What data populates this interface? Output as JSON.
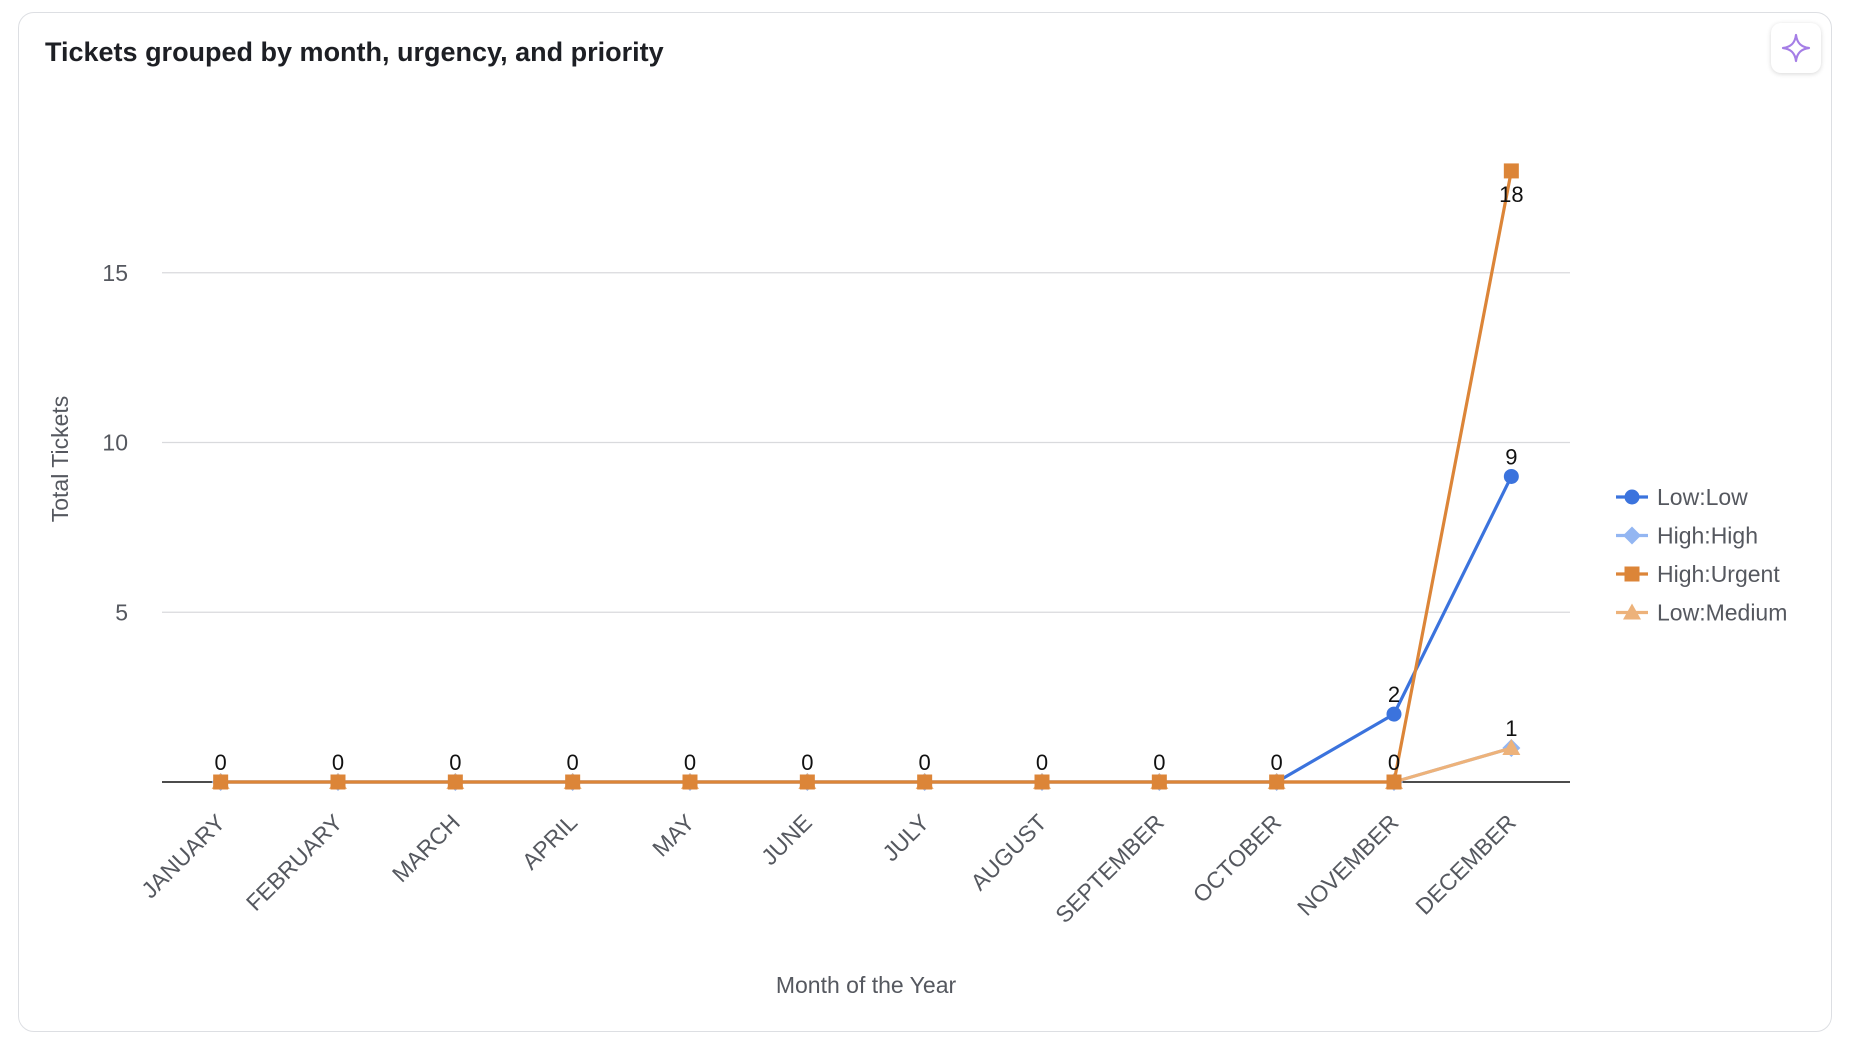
{
  "card": {
    "title": "Tickets grouped by month, urgency, and priority",
    "ai_icon": "sparkle-icon",
    "ai_color": "#a57ee6"
  },
  "chart_data": {
    "type": "line",
    "title": "Tickets grouped by month, urgency, and priority",
    "xlabel": "Month of the Year",
    "ylabel": "Total Tickets",
    "categories": [
      "JANUARY",
      "FEBRUARY",
      "MARCH",
      "APRIL",
      "MAY",
      "JUNE",
      "JULY",
      "AUGUST",
      "SEPTEMBER",
      "OCTOBER",
      "NOVEMBER",
      "DECEMBER"
    ],
    "ylim": [
      0,
      19.5
    ],
    "yticks": [
      5,
      10,
      15
    ],
    "grid": true,
    "legend_position": "right",
    "series": [
      {
        "name": "Low:Low",
        "color": "#3b73dd",
        "marker": "circle",
        "values": [
          0,
          0,
          0,
          0,
          0,
          0,
          0,
          0,
          0,
          0,
          2,
          9
        ]
      },
      {
        "name": "High:High",
        "color": "#93b6f2",
        "marker": "diamond",
        "values": [
          0,
          0,
          0,
          0,
          0,
          0,
          0,
          0,
          0,
          0,
          0,
          1
        ]
      },
      {
        "name": "High:Urgent",
        "color": "#dc8538",
        "marker": "square",
        "values": [
          0,
          0,
          0,
          0,
          0,
          0,
          0,
          0,
          0,
          0,
          0,
          18
        ]
      },
      {
        "name": "Low:Medium",
        "color": "#edb27a",
        "marker": "triangle",
        "values": [
          0,
          0,
          0,
          0,
          0,
          0,
          0,
          0,
          0,
          0,
          0,
          1
        ]
      }
    ],
    "data_labels": [
      {
        "category": "JANUARY",
        "text": "0",
        "position": "above"
      },
      {
        "category": "FEBRUARY",
        "text": "0",
        "position": "above"
      },
      {
        "category": "MARCH",
        "text": "0",
        "position": "above"
      },
      {
        "category": "APRIL",
        "text": "0",
        "position": "above"
      },
      {
        "category": "MAY",
        "text": "0",
        "position": "above"
      },
      {
        "category": "JUNE",
        "text": "0",
        "position": "above"
      },
      {
        "category": "JULY",
        "text": "0",
        "position": "above"
      },
      {
        "category": "AUGUST",
        "text": "0",
        "position": "above"
      },
      {
        "category": "SEPTEMBER",
        "text": "0",
        "position": "above"
      },
      {
        "category": "OCTOBER",
        "text": "0",
        "position": "above"
      },
      {
        "category": "NOVEMBER",
        "text": "2",
        "position": "above",
        "value": 2
      },
      {
        "category": "NOVEMBER",
        "text": "0",
        "position": "above",
        "value": 0
      },
      {
        "category": "DECEMBER",
        "text": "18",
        "position": "below",
        "value": 18
      },
      {
        "category": "DECEMBER",
        "text": "9",
        "position": "above",
        "value": 9
      },
      {
        "category": "DECEMBER",
        "text": "1",
        "position": "above",
        "value": 1
      }
    ]
  }
}
